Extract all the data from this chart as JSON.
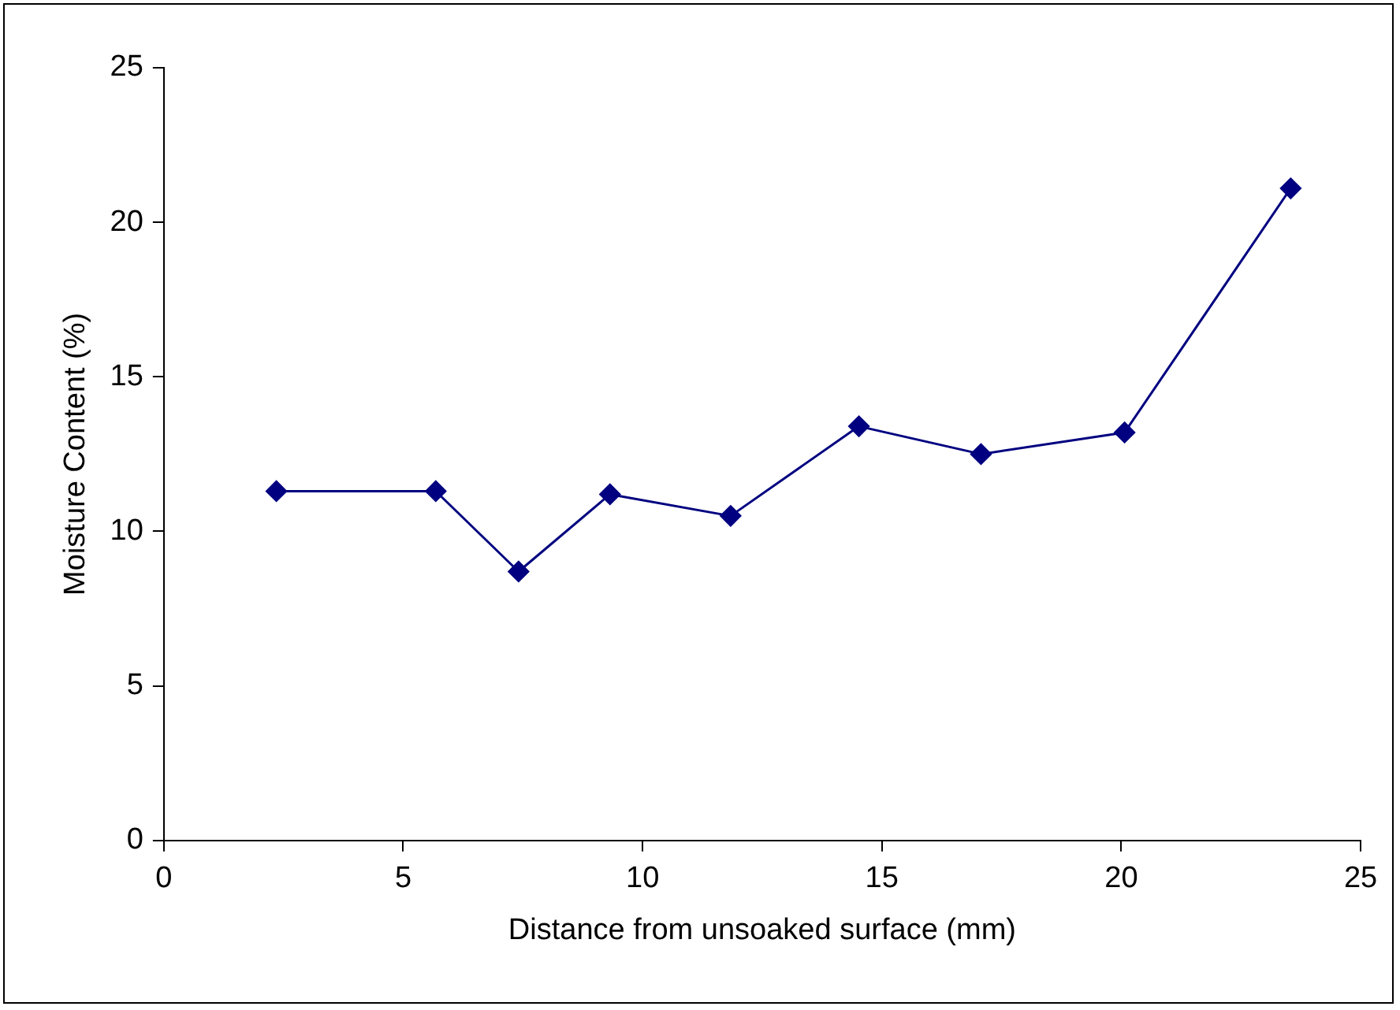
{
  "chart_data": {
    "type": "line",
    "xlabel": "Distance from unsoaked surface (mm)",
    "ylabel": "Moisture Content (%)",
    "x": [
      2.35,
      5.68,
      7.41,
      9.32,
      11.84,
      14.52,
      17.07,
      20.07,
      23.54
    ],
    "series": [
      {
        "color": "#000080",
        "values": [
          11.3,
          11.3,
          8.7,
          11.2,
          10.5,
          13.4,
          12.5,
          13.2,
          21.1
        ]
      }
    ],
    "xlim": [
      0,
      25
    ],
    "xticks": [
      0,
      5,
      10,
      15,
      20,
      25
    ],
    "ylim": [
      0,
      25
    ],
    "yticks": [
      0,
      5,
      10,
      15,
      20,
      25
    ],
    "grid": false,
    "legend": false,
    "marker": "diamond",
    "line_style": "solid"
  }
}
